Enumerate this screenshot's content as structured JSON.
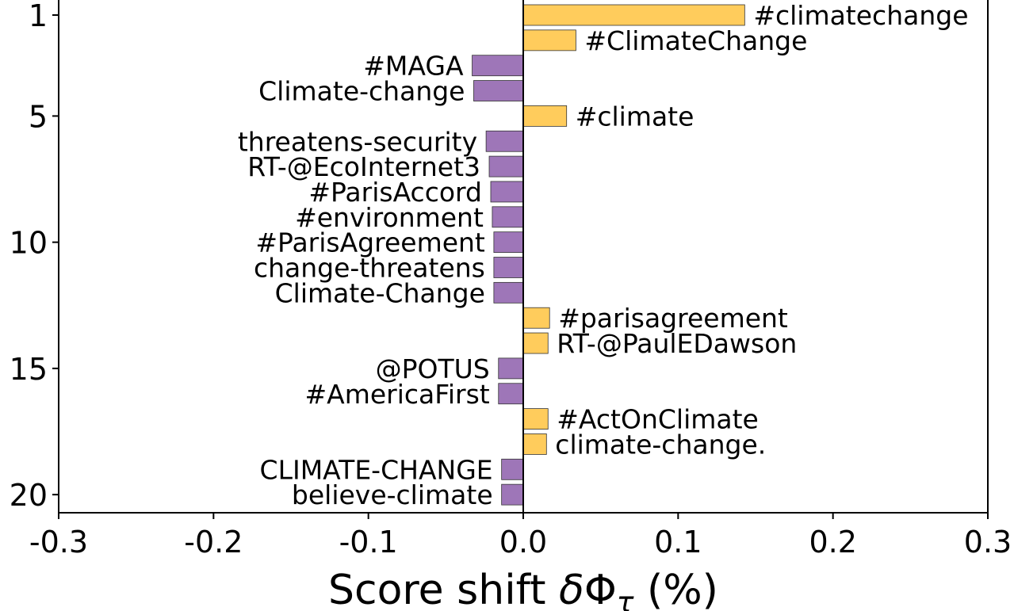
{
  "chart_data": {
    "type": "bar",
    "orientation": "horizontal",
    "xlabel": "Score shift δΦτ (%)",
    "xlabel_parts": {
      "pre": "Score shift ",
      "delta": "δ",
      "phi": "Φ",
      "tau": "τ",
      "post": " (%)"
    },
    "xlim": [
      -0.3,
      0.3
    ],
    "xticks": [
      -0.3,
      -0.2,
      -0.1,
      0.0,
      0.1,
      0.2,
      0.3
    ],
    "xtick_labels": [
      "-0.3",
      "-0.2",
      "-0.1",
      "0.0",
      "0.1",
      "0.2",
      "0.3"
    ],
    "yticks": [
      1,
      5,
      10,
      15,
      20
    ],
    "yticks_labels": [
      "1",
      "5",
      "10",
      "15",
      "20"
    ],
    "ylim": [
      0.4,
      20.7
    ],
    "grid": false,
    "colors": {
      "positive": "#ffcc5c",
      "negative": "#9e76b8",
      "edge": "#333333"
    },
    "bars": [
      {
        "rank": 1,
        "label": "#climatechange",
        "value": 0.143
      },
      {
        "rank": 2,
        "label": "#ClimateChange",
        "value": 0.034
      },
      {
        "rank": 3,
        "label": "#MAGA",
        "value": -0.033
      },
      {
        "rank": 4,
        "label": "Climate-change",
        "value": -0.032
      },
      {
        "rank": 5,
        "label": "#climate",
        "value": 0.028
      },
      {
        "rank": 6,
        "label": "threatens-security",
        "value": -0.024
      },
      {
        "rank": 7,
        "label": "RT-@EcoInternet3",
        "value": -0.022
      },
      {
        "rank": 8,
        "label": "#ParisAccord",
        "value": -0.021
      },
      {
        "rank": 9,
        "label": "#environment",
        "value": -0.02
      },
      {
        "rank": 10,
        "label": "#ParisAgreement",
        "value": -0.019
      },
      {
        "rank": 11,
        "label": "change-threatens",
        "value": -0.019
      },
      {
        "rank": 12,
        "label": "Climate-Change",
        "value": -0.019
      },
      {
        "rank": 13,
        "label": "#parisagreement",
        "value": 0.017
      },
      {
        "rank": 14,
        "label": "RT-@PaulEDawson",
        "value": 0.016
      },
      {
        "rank": 15,
        "label": "@POTUS",
        "value": -0.016
      },
      {
        "rank": 16,
        "label": "#AmericaFirst",
        "value": -0.016
      },
      {
        "rank": 17,
        "label": "#ActOnClimate",
        "value": 0.016
      },
      {
        "rank": 18,
        "label": "climate-change.",
        "value": 0.015
      },
      {
        "rank": 19,
        "label": "CLIMATE-CHANGE",
        "value": -0.014
      },
      {
        "rank": 20,
        "label": "believe-climate",
        "value": -0.014
      }
    ]
  }
}
